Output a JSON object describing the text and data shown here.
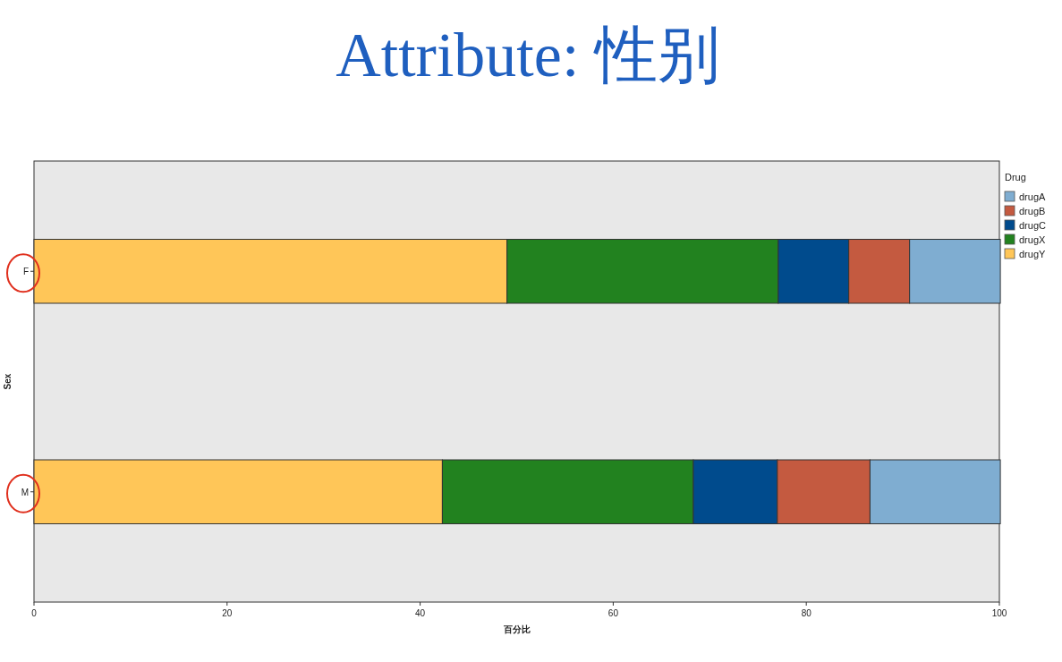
{
  "chart_data": {
    "type": "bar",
    "orientation": "horizontal",
    "stacked": true,
    "title": "Attribute: 性别",
    "xlabel": "百分比",
    "ylabel": "Sex",
    "legend_title": "Drug",
    "categories": [
      "F",
      "M"
    ],
    "series": [
      {
        "name": "drugY",
        "color": "#ffc658",
        "values": [
          49.0,
          42.3
        ]
      },
      {
        "name": "drugX",
        "color": "#22821f",
        "values": [
          28.1,
          26.0
        ]
      },
      {
        "name": "drugC",
        "color": "#004b8d",
        "values": [
          7.3,
          8.7
        ]
      },
      {
        "name": "drugB",
        "color": "#c45a40",
        "values": [
          6.3,
          9.6
        ]
      },
      {
        "name": "drugA",
        "color": "#7fadd1",
        "values": [
          9.4,
          13.5
        ]
      }
    ],
    "xlim": [
      0,
      100
    ],
    "xticks": [
      0,
      20,
      40,
      60,
      80,
      100
    ],
    "grid": false,
    "legend": "top right"
  }
}
